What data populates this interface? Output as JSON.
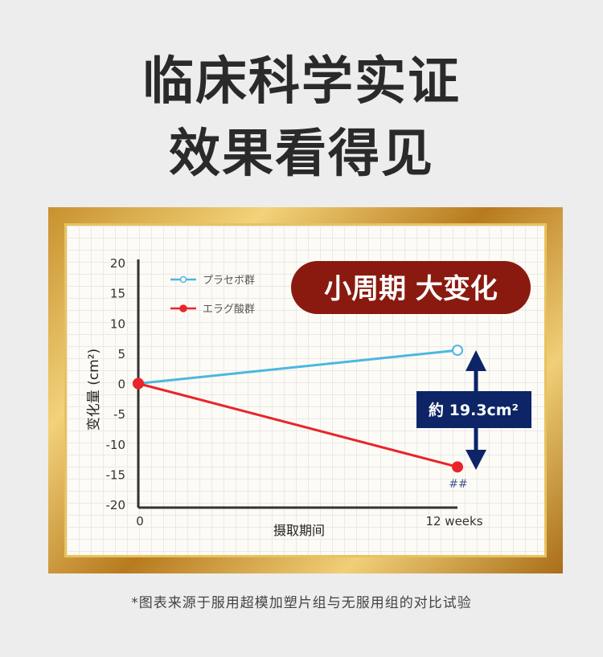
{
  "headline": {
    "line1": "临床科学实证",
    "line2": "效果看得见"
  },
  "badge": {
    "text": "小周期 大变化",
    "color": "#8a1a10"
  },
  "annotation": {
    "text": "約 19.3cm²",
    "color": "#0d2566"
  },
  "significance_mark": "##",
  "footnote": "*图表来源于服用超模加塑片组与无服用组的对比试验",
  "chart_data": {
    "type": "line",
    "xlabel": "摄取期间",
    "ylabel": "变化量 (cm²)",
    "x_ticks": [
      "0",
      "12 weeks"
    ],
    "y_ticks": [
      20,
      15,
      10,
      5,
      0,
      -5,
      -10,
      -15,
      -20
    ],
    "ylim": [
      -20,
      20
    ],
    "grid": true,
    "legend_position": "top-left",
    "series": [
      {
        "name": "プラセボ群",
        "color": "#4ab8e0",
        "marker": "open-circle",
        "values": [
          0,
          5.5
        ]
      },
      {
        "name": "エラグ酸群",
        "color": "#e8252a",
        "marker": "filled-circle",
        "values": [
          0,
          -13.8
        ]
      }
    ]
  }
}
